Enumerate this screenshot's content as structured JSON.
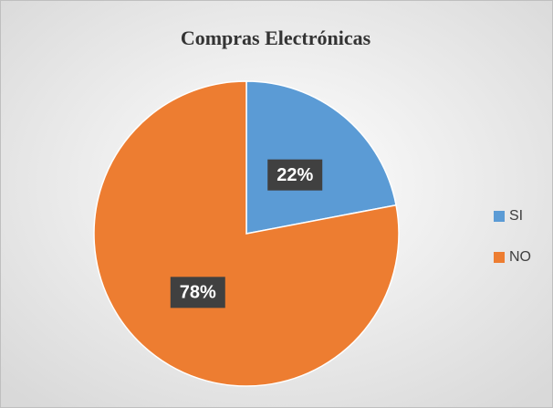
{
  "chart_data": {
    "type": "pie",
    "title": "Compras Electrónicas",
    "categories": [
      "SI",
      "NO"
    ],
    "values": [
      22,
      78
    ],
    "value_labels": [
      "22%",
      "78%"
    ],
    "colors": [
      "#5b9bd5",
      "#ed7d31"
    ],
    "legend": "right"
  }
}
